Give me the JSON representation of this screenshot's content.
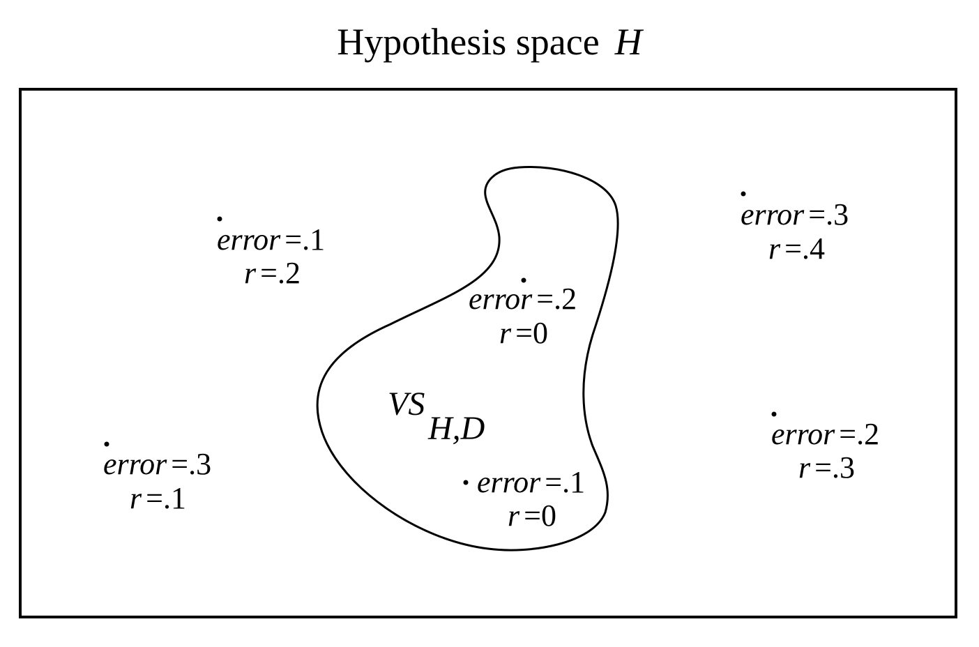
{
  "title": {
    "text": "Hypothesis space",
    "variable": "H"
  },
  "version_space": {
    "label": "VS",
    "subscript": "H,D"
  },
  "hypotheses": [
    {
      "id": "h1",
      "error_label": "error",
      "error_value": "=.1",
      "r_label": "r",
      "r_value": "=.2",
      "inside_version_space": false
    },
    {
      "id": "h2",
      "error_label": "error",
      "error_value": "=.3",
      "r_label": "r",
      "r_value": "=.4",
      "inside_version_space": false
    },
    {
      "id": "h3",
      "error_label": "error",
      "error_value": "=.2",
      "r_label": "r",
      "r_value": "=0",
      "inside_version_space": true
    },
    {
      "id": "h4",
      "error_label": "error",
      "error_value": "=.3",
      "r_label": "r",
      "r_value": "=.1",
      "inside_version_space": false
    },
    {
      "id": "h5",
      "error_label": "error",
      "error_value": "=.1",
      "r_label": "r",
      "r_value": "=0",
      "inside_version_space": true
    },
    {
      "id": "h6",
      "error_label": "error",
      "error_value": "=.2",
      "r_label": "r",
      "r_value": "=.3",
      "inside_version_space": false
    }
  ]
}
